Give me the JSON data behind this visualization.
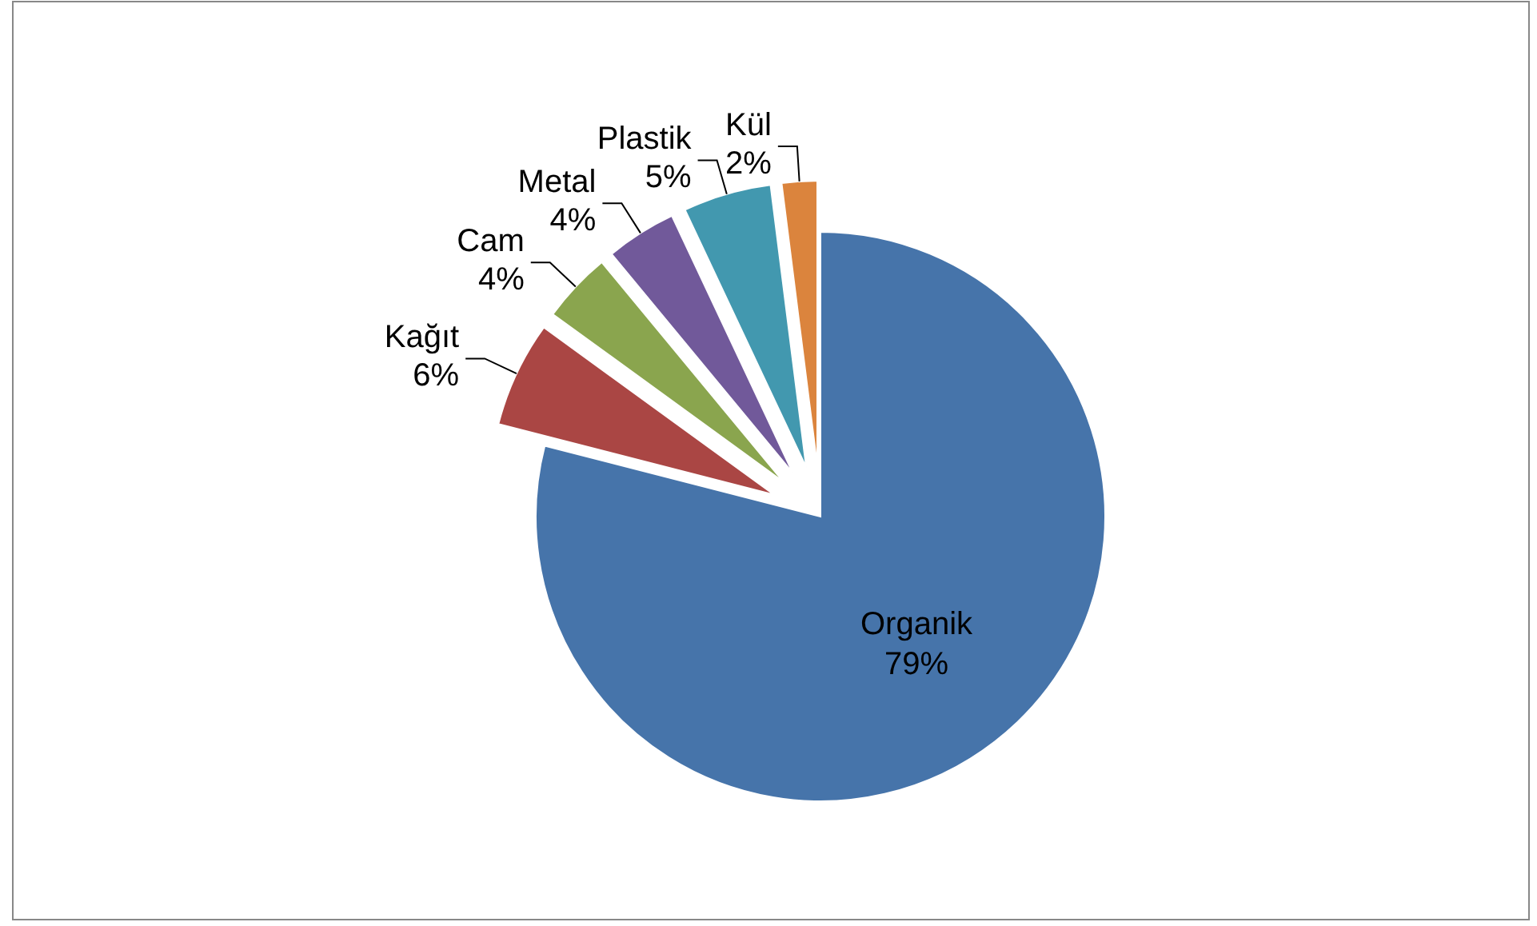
{
  "chart_data": {
    "type": "pie",
    "categories": [
      "Organik",
      "Kağıt",
      "Cam",
      "Metal",
      "Plastik",
      "Kül"
    ],
    "values": [
      79,
      6,
      4,
      4,
      5,
      2
    ],
    "value_labels": [
      "79%",
      "6%",
      "4%",
      "4%",
      "5%",
      "2%"
    ],
    "colors": [
      "#4674aa",
      "#aa4644",
      "#8aa54e",
      "#71599a",
      "#4298af",
      "#db843d"
    ]
  }
}
